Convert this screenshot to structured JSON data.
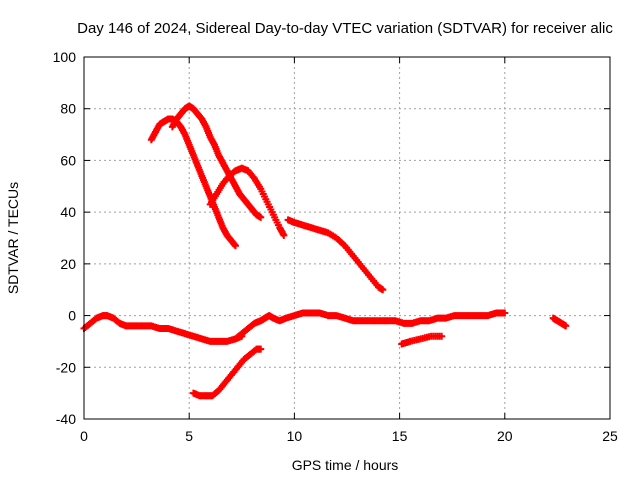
{
  "chart_data": {
    "type": "scatter",
    "title": "Day 146 of 2024, Sidereal Day-to-day VTEC variation (SDTVAR) for receiver alic",
    "xlabel": "GPS time / hours",
    "ylabel": "SDTVAR / TECUs",
    "xlim": [
      0,
      25
    ],
    "ylim": [
      -40,
      100
    ],
    "xticks": [
      0,
      5,
      10,
      15,
      20,
      25
    ],
    "yticks": [
      -40,
      -20,
      0,
      20,
      40,
      60,
      80,
      100
    ],
    "grid": true,
    "legend": "none",
    "marker_color": "#ff0000",
    "series": [
      {
        "x": [
          0.0,
          0.3,
          0.6,
          0.9,
          1.1,
          1.4,
          1.7,
          2.0,
          2.4,
          2.8,
          3.2,
          3.6,
          4.0,
          4.4,
          4.8,
          5.2,
          5.6,
          6.0,
          6.4,
          6.8,
          7.2,
          7.5
        ],
        "y": [
          -5,
          -3,
          -1,
          0,
          0,
          -1,
          -3,
          -4,
          -4,
          -4,
          -4,
          -5,
          -5,
          -6,
          -7,
          -8,
          -9,
          -10,
          -10,
          -10,
          -9,
          -8
        ]
      },
      {
        "x": [
          7.2,
          7.5,
          7.8,
          8.1,
          8.4,
          8.6,
          8.8,
          9.0,
          9.3,
          9.6,
          10.0,
          10.4,
          10.8,
          11.2,
          11.6,
          12.0,
          12.4,
          12.8,
          13.2,
          13.6,
          14.0,
          14.4,
          14.8,
          15.2,
          15.6,
          16.0,
          16.4,
          16.8,
          17.2,
          17.6,
          18.0,
          18.4,
          18.8,
          19.2,
          19.6,
          20.0
        ],
        "y": [
          -9,
          -7,
          -5,
          -3,
          -2,
          -1,
          0,
          -1,
          -2,
          -1,
          0,
          1,
          1,
          1,
          0,
          0,
          -1,
          -2,
          -2,
          -2,
          -2,
          -2,
          -2,
          -3,
          -3,
          -2,
          -2,
          -1,
          -1,
          0,
          0,
          0,
          0,
          0,
          1,
          1
        ]
      },
      {
        "x": [
          3.2,
          3.4,
          3.6,
          3.8,
          4.0,
          4.2,
          4.4,
          4.6,
          4.8,
          5.0,
          5.2,
          5.4,
          5.6,
          5.8,
          6.0,
          6.2,
          6.4,
          6.6,
          6.8,
          7.0,
          7.2
        ],
        "y": [
          68,
          71,
          74,
          75,
          76,
          76,
          75,
          73,
          70,
          66,
          62,
          58,
          54,
          50,
          46,
          42,
          38,
          34,
          31,
          29,
          27
        ]
      },
      {
        "x": [
          4.2,
          4.4,
          4.6,
          4.8,
          5.0,
          5.2,
          5.4,
          5.6,
          5.8,
          6.0,
          6.2,
          6.4,
          6.6,
          6.8,
          7.0,
          7.2,
          7.4,
          7.6,
          7.8,
          8.0,
          8.2,
          8.4
        ],
        "y": [
          73,
          76,
          78,
          80,
          81,
          80,
          78,
          76,
          73,
          69,
          66,
          62,
          59,
          56,
          53,
          50,
          47,
          45,
          43,
          41,
          39,
          38
        ]
      },
      {
        "x": [
          6.0,
          6.3,
          6.6,
          6.9,
          7.2,
          7.5,
          7.8,
          8.1,
          8.4,
          8.7,
          9.0,
          9.3,
          9.5
        ],
        "y": [
          43,
          47,
          51,
          54,
          56,
          57,
          56,
          53,
          49,
          44,
          39,
          34,
          31
        ]
      },
      {
        "x": [
          9.7,
          10.0,
          10.4,
          10.8,
          11.2,
          11.6,
          12.0,
          12.4,
          12.8,
          13.2,
          13.6,
          14.0,
          14.2
        ],
        "y": [
          37,
          36,
          35,
          34,
          33,
          32,
          30,
          27,
          23,
          19,
          15,
          11,
          10
        ]
      },
      {
        "x": [
          5.2,
          5.5,
          5.8,
          6.1,
          6.4,
          6.7,
          7.0,
          7.3,
          7.6,
          7.9,
          8.2,
          8.4
        ],
        "y": [
          -30,
          -31,
          -31,
          -31,
          -29,
          -26,
          -23,
          -20,
          -17,
          -15,
          -13,
          -13
        ]
      },
      {
        "x": [
          15.1,
          15.5,
          16.0,
          16.5,
          17.0
        ],
        "y": [
          -11,
          -10,
          -9,
          -8,
          -8
        ]
      },
      {
        "x": [
          22.3,
          22.5,
          22.7,
          22.9
        ],
        "y": [
          -1,
          -2,
          -3,
          -4
        ]
      }
    ]
  }
}
